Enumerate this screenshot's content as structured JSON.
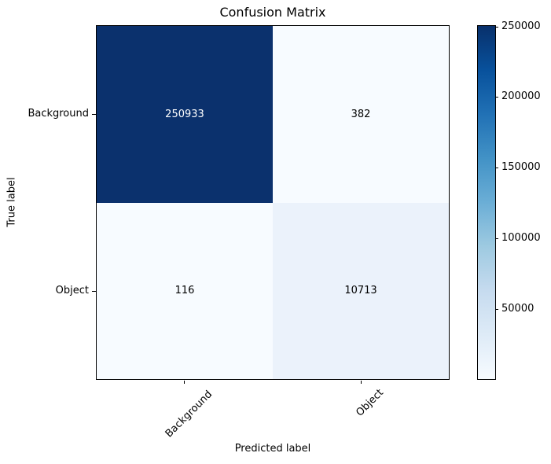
{
  "figure": {
    "title": "Confusion Matrix",
    "xlabel": "Predicted label",
    "ylabel": "True label"
  },
  "chart_data": {
    "type": "heatmap",
    "title": "Confusion Matrix",
    "xlabel": "Predicted label",
    "ylabel": "True label",
    "x_categories": [
      "Background",
      "Object"
    ],
    "y_categories": [
      "Background",
      "Object"
    ],
    "matrix": [
      [
        250933,
        382
      ],
      [
        116,
        10713
      ]
    ],
    "colormap": "Blues",
    "vmin": 116,
    "vmax": 250933,
    "grid": false,
    "cells": [
      {
        "row": "Background",
        "col": "Background",
        "value": "250933",
        "bg": "#0b316d",
        "text_color": "#ffffff"
      },
      {
        "row": "Background",
        "col": "Object",
        "value": "382",
        "bg": "#f7fbff",
        "text_color": "#000000"
      },
      {
        "row": "Object",
        "col": "Background",
        "value": "116",
        "bg": "#f7fbff",
        "text_color": "#000000"
      },
      {
        "row": "Object",
        "col": "Object",
        "value": "10713",
        "bg": "#ebf2fb",
        "text_color": "#000000"
      }
    ],
    "colorbar": {
      "position": "right",
      "ticks": [
        "250000",
        "200000",
        "150000",
        "100000",
        "50000"
      ],
      "gradient_top_to_bottom": [
        "#08306b",
        "#08519c",
        "#2171b5",
        "#4292c6",
        "#6baed6",
        "#9ecae1",
        "#c6dbef",
        "#deebf7",
        "#f7fbff"
      ]
    }
  }
}
